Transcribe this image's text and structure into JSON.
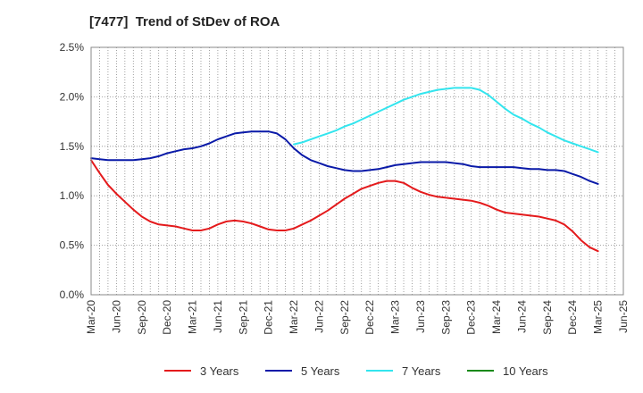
{
  "chart_data": {
    "type": "line",
    "title": "[7477]  Trend of StDev of ROA",
    "xlabel": "",
    "ylabel": "",
    "x_ticks": [
      "Mar-20",
      "Jun-20",
      "Sep-20",
      "Dec-20",
      "Mar-21",
      "Jun-21",
      "Sep-21",
      "Dec-21",
      "Mar-22",
      "Jun-22",
      "Sep-22",
      "Dec-22",
      "Mar-23",
      "Jun-23",
      "Sep-23",
      "Dec-23",
      "Mar-24",
      "Jun-24",
      "Sep-24",
      "Dec-24",
      "Mar-25",
      "Jun-25"
    ],
    "y_ticks": [
      "0.0%",
      "0.5%",
      "1.0%",
      "1.5%",
      "2.0%",
      "2.5%"
    ],
    "ylim": [
      0,
      2.5
    ],
    "y_unit": "%",
    "grid": true,
    "legend_position": "bottom",
    "series": [
      {
        "name": "3 Years",
        "color": "#e41a1c",
        "points": [
          [
            "Mar-20",
            1.36
          ],
          [
            "Apr-20",
            1.23
          ],
          [
            "May-20",
            1.11
          ],
          [
            "Jun-20",
            1.02
          ],
          [
            "Jul-20",
            0.94
          ],
          [
            "Aug-20",
            0.86
          ],
          [
            "Sep-20",
            0.79
          ],
          [
            "Oct-20",
            0.74
          ],
          [
            "Nov-20",
            0.71
          ],
          [
            "Dec-20",
            0.7
          ],
          [
            "Jan-21",
            0.69
          ],
          [
            "Feb-21",
            0.67
          ],
          [
            "Mar-21",
            0.65
          ],
          [
            "Apr-21",
            0.65
          ],
          [
            "May-21",
            0.67
          ],
          [
            "Jun-21",
            0.71
          ],
          [
            "Jul-21",
            0.74
          ],
          [
            "Aug-21",
            0.75
          ],
          [
            "Sep-21",
            0.74
          ],
          [
            "Oct-21",
            0.72
          ],
          [
            "Nov-21",
            0.69
          ],
          [
            "Dec-21",
            0.66
          ],
          [
            "Jan-22",
            0.65
          ],
          [
            "Feb-22",
            0.65
          ],
          [
            "Mar-22",
            0.67
          ],
          [
            "Apr-22",
            0.71
          ],
          [
            "May-22",
            0.75
          ],
          [
            "Jun-22",
            0.8
          ],
          [
            "Jul-22",
            0.85
          ],
          [
            "Aug-22",
            0.91
          ],
          [
            "Sep-22",
            0.97
          ],
          [
            "Oct-22",
            1.02
          ],
          [
            "Nov-22",
            1.07
          ],
          [
            "Dec-22",
            1.1
          ],
          [
            "Jan-23",
            1.13
          ],
          [
            "Feb-23",
            1.15
          ],
          [
            "Mar-23",
            1.15
          ],
          [
            "Apr-23",
            1.13
          ],
          [
            "May-23",
            1.08
          ],
          [
            "Jun-23",
            1.04
          ],
          [
            "Jul-23",
            1.01
          ],
          [
            "Aug-23",
            0.99
          ],
          [
            "Sep-23",
            0.98
          ],
          [
            "Oct-23",
            0.97
          ],
          [
            "Nov-23",
            0.96
          ],
          [
            "Dec-23",
            0.95
          ],
          [
            "Jan-24",
            0.93
          ],
          [
            "Feb-24",
            0.9
          ],
          [
            "Mar-24",
            0.86
          ],
          [
            "Apr-24",
            0.83
          ],
          [
            "May-24",
            0.82
          ],
          [
            "Jun-24",
            0.81
          ],
          [
            "Jul-24",
            0.8
          ],
          [
            "Aug-24",
            0.79
          ],
          [
            "Sep-24",
            0.77
          ],
          [
            "Oct-24",
            0.75
          ],
          [
            "Nov-24",
            0.71
          ],
          [
            "Dec-24",
            0.64
          ],
          [
            "Jan-25",
            0.55
          ],
          [
            "Feb-25",
            0.48
          ],
          [
            "Mar-25",
            0.44
          ]
        ]
      },
      {
        "name": "5 Years",
        "color": "#0a1aa8",
        "points": [
          [
            "Mar-20",
            1.38
          ],
          [
            "Apr-20",
            1.37
          ],
          [
            "May-20",
            1.36
          ],
          [
            "Jun-20",
            1.36
          ],
          [
            "Jul-20",
            1.36
          ],
          [
            "Aug-20",
            1.36
          ],
          [
            "Sep-20",
            1.37
          ],
          [
            "Oct-20",
            1.38
          ],
          [
            "Nov-20",
            1.4
          ],
          [
            "Dec-20",
            1.43
          ],
          [
            "Jan-21",
            1.45
          ],
          [
            "Feb-21",
            1.47
          ],
          [
            "Mar-21",
            1.48
          ],
          [
            "Apr-21",
            1.5
          ],
          [
            "May-21",
            1.53
          ],
          [
            "Jun-21",
            1.57
          ],
          [
            "Jul-21",
            1.6
          ],
          [
            "Aug-21",
            1.63
          ],
          [
            "Sep-21",
            1.64
          ],
          [
            "Oct-21",
            1.65
          ],
          [
            "Nov-21",
            1.65
          ],
          [
            "Dec-21",
            1.65
          ],
          [
            "Jan-22",
            1.63
          ],
          [
            "Feb-22",
            1.57
          ],
          [
            "Mar-22",
            1.48
          ],
          [
            "Apr-22",
            1.41
          ],
          [
            "May-22",
            1.36
          ],
          [
            "Jun-22",
            1.33
          ],
          [
            "Jul-22",
            1.3
          ],
          [
            "Aug-22",
            1.28
          ],
          [
            "Sep-22",
            1.26
          ],
          [
            "Oct-22",
            1.25
          ],
          [
            "Nov-22",
            1.25
          ],
          [
            "Dec-22",
            1.26
          ],
          [
            "Jan-23",
            1.27
          ],
          [
            "Feb-23",
            1.29
          ],
          [
            "Mar-23",
            1.31
          ],
          [
            "Apr-23",
            1.32
          ],
          [
            "May-23",
            1.33
          ],
          [
            "Jun-23",
            1.34
          ],
          [
            "Jul-23",
            1.34
          ],
          [
            "Aug-23",
            1.34
          ],
          [
            "Sep-23",
            1.34
          ],
          [
            "Oct-23",
            1.33
          ],
          [
            "Nov-23",
            1.32
          ],
          [
            "Dec-23",
            1.3
          ],
          [
            "Jan-24",
            1.29
          ],
          [
            "Feb-24",
            1.29
          ],
          [
            "Mar-24",
            1.29
          ],
          [
            "Apr-24",
            1.29
          ],
          [
            "May-24",
            1.29
          ],
          [
            "Jun-24",
            1.28
          ],
          [
            "Jul-24",
            1.27
          ],
          [
            "Aug-24",
            1.27
          ],
          [
            "Sep-24",
            1.26
          ],
          [
            "Oct-24",
            1.26
          ],
          [
            "Nov-24",
            1.25
          ],
          [
            "Dec-24",
            1.22
          ],
          [
            "Jan-25",
            1.19
          ],
          [
            "Feb-25",
            1.15
          ],
          [
            "Mar-25",
            1.12
          ]
        ]
      },
      {
        "name": "7 Years",
        "color": "#33e5ee",
        "points": [
          [
            "Mar-22",
            1.52
          ],
          [
            "Apr-22",
            1.54
          ],
          [
            "May-22",
            1.57
          ],
          [
            "Jun-22",
            1.6
          ],
          [
            "Jul-22",
            1.63
          ],
          [
            "Aug-22",
            1.66
          ],
          [
            "Sep-22",
            1.7
          ],
          [
            "Oct-22",
            1.73
          ],
          [
            "Nov-22",
            1.77
          ],
          [
            "Dec-22",
            1.81
          ],
          [
            "Jan-23",
            1.85
          ],
          [
            "Feb-23",
            1.89
          ],
          [
            "Mar-23",
            1.93
          ],
          [
            "Apr-23",
            1.97
          ],
          [
            "May-23",
            2.0
          ],
          [
            "Jun-23",
            2.03
          ],
          [
            "Jul-23",
            2.05
          ],
          [
            "Aug-23",
            2.07
          ],
          [
            "Sep-23",
            2.08
          ],
          [
            "Oct-23",
            2.09
          ],
          [
            "Nov-23",
            2.09
          ],
          [
            "Dec-23",
            2.09
          ],
          [
            "Jan-24",
            2.07
          ],
          [
            "Feb-24",
            2.02
          ],
          [
            "Mar-24",
            1.95
          ],
          [
            "Apr-24",
            1.88
          ],
          [
            "May-24",
            1.82
          ],
          [
            "Jun-24",
            1.78
          ],
          [
            "Jul-24",
            1.73
          ],
          [
            "Aug-24",
            1.69
          ],
          [
            "Sep-24",
            1.64
          ],
          [
            "Oct-24",
            1.6
          ],
          [
            "Nov-24",
            1.56
          ],
          [
            "Dec-24",
            1.53
          ],
          [
            "Jan-25",
            1.5
          ],
          [
            "Feb-25",
            1.47
          ],
          [
            "Mar-25",
            1.44
          ]
        ]
      },
      {
        "name": "10 Years",
        "color": "#1a8a1a",
        "points": []
      }
    ]
  }
}
